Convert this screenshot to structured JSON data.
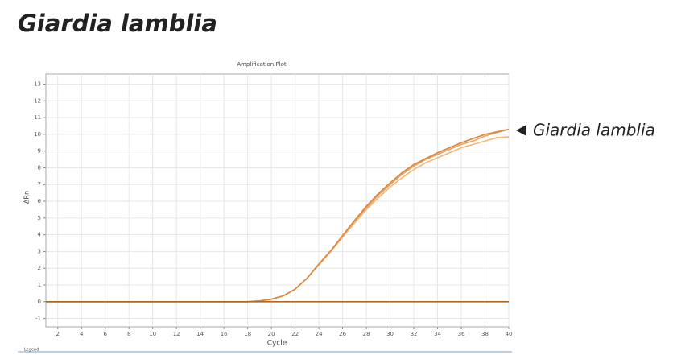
{
  "heading": "Giardia lamblia",
  "chart_data": {
    "type": "line",
    "title": "Amplification Plot",
    "x_label": "Cycle",
    "y_label": "ΔRn",
    "annotation": "Giardia lamblia",
    "legend_label": "Legend",
    "x": [
      1,
      2,
      3,
      4,
      5,
      6,
      7,
      8,
      9,
      10,
      11,
      12,
      13,
      14,
      15,
      16,
      17,
      18,
      19,
      20,
      21,
      22,
      23,
      24,
      25,
      26,
      27,
      28,
      29,
      30,
      31,
      32,
      33,
      34,
      35,
      36,
      37,
      38,
      39,
      40
    ],
    "series": [
      {
        "color": "#e8a15c",
        "values": [
          0,
          0,
          0,
          0,
          0,
          0,
          0,
          0,
          0,
          0,
          0,
          0,
          0,
          0,
          0,
          0,
          0,
          0,
          0.05,
          0.15,
          0.35,
          0.75,
          1.4,
          2.2,
          3.0,
          3.9,
          4.8,
          5.6,
          6.35,
          7.0,
          7.6,
          8.1,
          8.5,
          8.8,
          9.1,
          9.4,
          9.6,
          9.9,
          10.1,
          10.3
        ]
      },
      {
        "color": "#f0b77d",
        "values": [
          0,
          0,
          0,
          0,
          0,
          0,
          0,
          0,
          0,
          0,
          0,
          0,
          0,
          0,
          0,
          0,
          0,
          0,
          0.05,
          0.15,
          0.35,
          0.75,
          1.4,
          2.2,
          3.0,
          3.85,
          4.7,
          5.5,
          6.2,
          6.85,
          7.4,
          7.9,
          8.3,
          8.6,
          8.9,
          9.2,
          9.4,
          9.6,
          9.8,
          9.85
        ]
      },
      {
        "color": "#d9853b",
        "values": [
          0,
          0,
          0,
          0,
          0,
          0,
          0,
          0,
          0,
          0,
          0,
          0,
          0,
          0,
          0,
          0,
          0,
          0,
          0.05,
          0.15,
          0.35,
          0.75,
          1.4,
          2.25,
          3.05,
          3.95,
          4.85,
          5.7,
          6.45,
          7.1,
          7.7,
          8.2,
          8.55,
          8.9,
          9.2,
          9.5,
          9.75,
          10.0,
          10.15,
          10.3
        ]
      },
      {
        "color": "#b8651f",
        "values": [
          0,
          0,
          0,
          0,
          0,
          0,
          0,
          0,
          0,
          0,
          0,
          0,
          0,
          0,
          0,
          0,
          0,
          0,
          0,
          0,
          0,
          0,
          0,
          0,
          0,
          0,
          0,
          0,
          0,
          0,
          0,
          0,
          0,
          0,
          0,
          0,
          0,
          0,
          0,
          0
        ]
      }
    ],
    "xlim": [
      1,
      40
    ],
    "xticks": [
      2,
      4,
      6,
      8,
      10,
      12,
      14,
      16,
      18,
      20,
      22,
      24,
      26,
      28,
      30,
      32,
      34,
      36,
      38,
      40
    ],
    "ylim": [
      -1.5,
      13.6
    ],
    "yticks": [
      -1,
      0,
      1,
      2,
      3,
      4,
      5,
      6,
      7,
      8,
      9,
      10,
      11,
      12,
      13
    ],
    "grid": true
  }
}
